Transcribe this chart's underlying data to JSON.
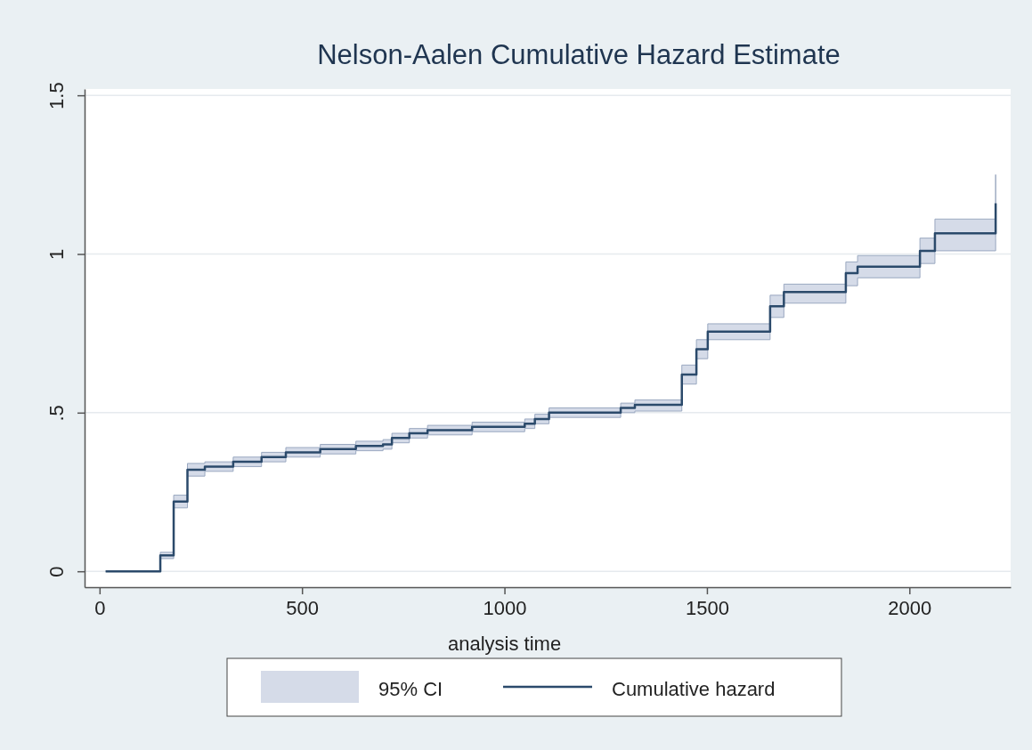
{
  "chart_data": {
    "type": "step",
    "title": "Nelson-Aalen Cumulative Hazard Estimate",
    "xlabel": "analysis time",
    "annotations": [
      "95% CI"
    ],
    "x": [
      15,
      150,
      183,
      217,
      260,
      330,
      400,
      460,
      545,
      633,
      700,
      722,
      765,
      810,
      920,
      1050,
      1075,
      1110,
      1287,
      1322,
      1438,
      1474,
      1502,
      1656,
      1690,
      1843,
      1872,
      2026,
      2063,
      2213
    ],
    "series": [
      {
        "name": "Cumulative hazard",
        "color": "#2b4a6b",
        "values": [
          0,
          0.05,
          0.22,
          0.32,
          0.33,
          0.345,
          0.36,
          0.375,
          0.385,
          0.395,
          0.4,
          0.42,
          0.435,
          0.445,
          0.455,
          0.465,
          0.48,
          0.5,
          0.515,
          0.525,
          0.62,
          0.7,
          0.755,
          0.835,
          0.88,
          0.94,
          0.96,
          1.01,
          1.065,
          1.16
        ],
        "lower": [
          0,
          0.04,
          0.2,
          0.3,
          0.315,
          0.33,
          0.345,
          0.36,
          0.37,
          0.38,
          0.385,
          0.405,
          0.42,
          0.43,
          0.44,
          0.45,
          0.465,
          0.485,
          0.5,
          0.505,
          0.59,
          0.67,
          0.73,
          0.8,
          0.845,
          0.9,
          0.925,
          0.97,
          1.01,
          1.05
        ],
        "upper": [
          0,
          0.06,
          0.24,
          0.34,
          0.345,
          0.36,
          0.375,
          0.39,
          0.4,
          0.41,
          0.415,
          0.435,
          0.45,
          0.46,
          0.47,
          0.48,
          0.495,
          0.515,
          0.53,
          0.54,
          0.65,
          0.73,
          0.78,
          0.87,
          0.905,
          0.975,
          0.995,
          1.05,
          1.11,
          1.25
        ]
      }
    ],
    "xlim": [
      -37,
      2250
    ],
    "xticks": [
      0,
      500,
      1000,
      1500,
      2000
    ],
    "ylim": [
      -0.05,
      1.52
    ],
    "yticks": [
      0,
      {
        "value": 0.5,
        "label": ".5"
      },
      1,
      1.5
    ],
    "grid": "y",
    "legend": "bottom"
  }
}
